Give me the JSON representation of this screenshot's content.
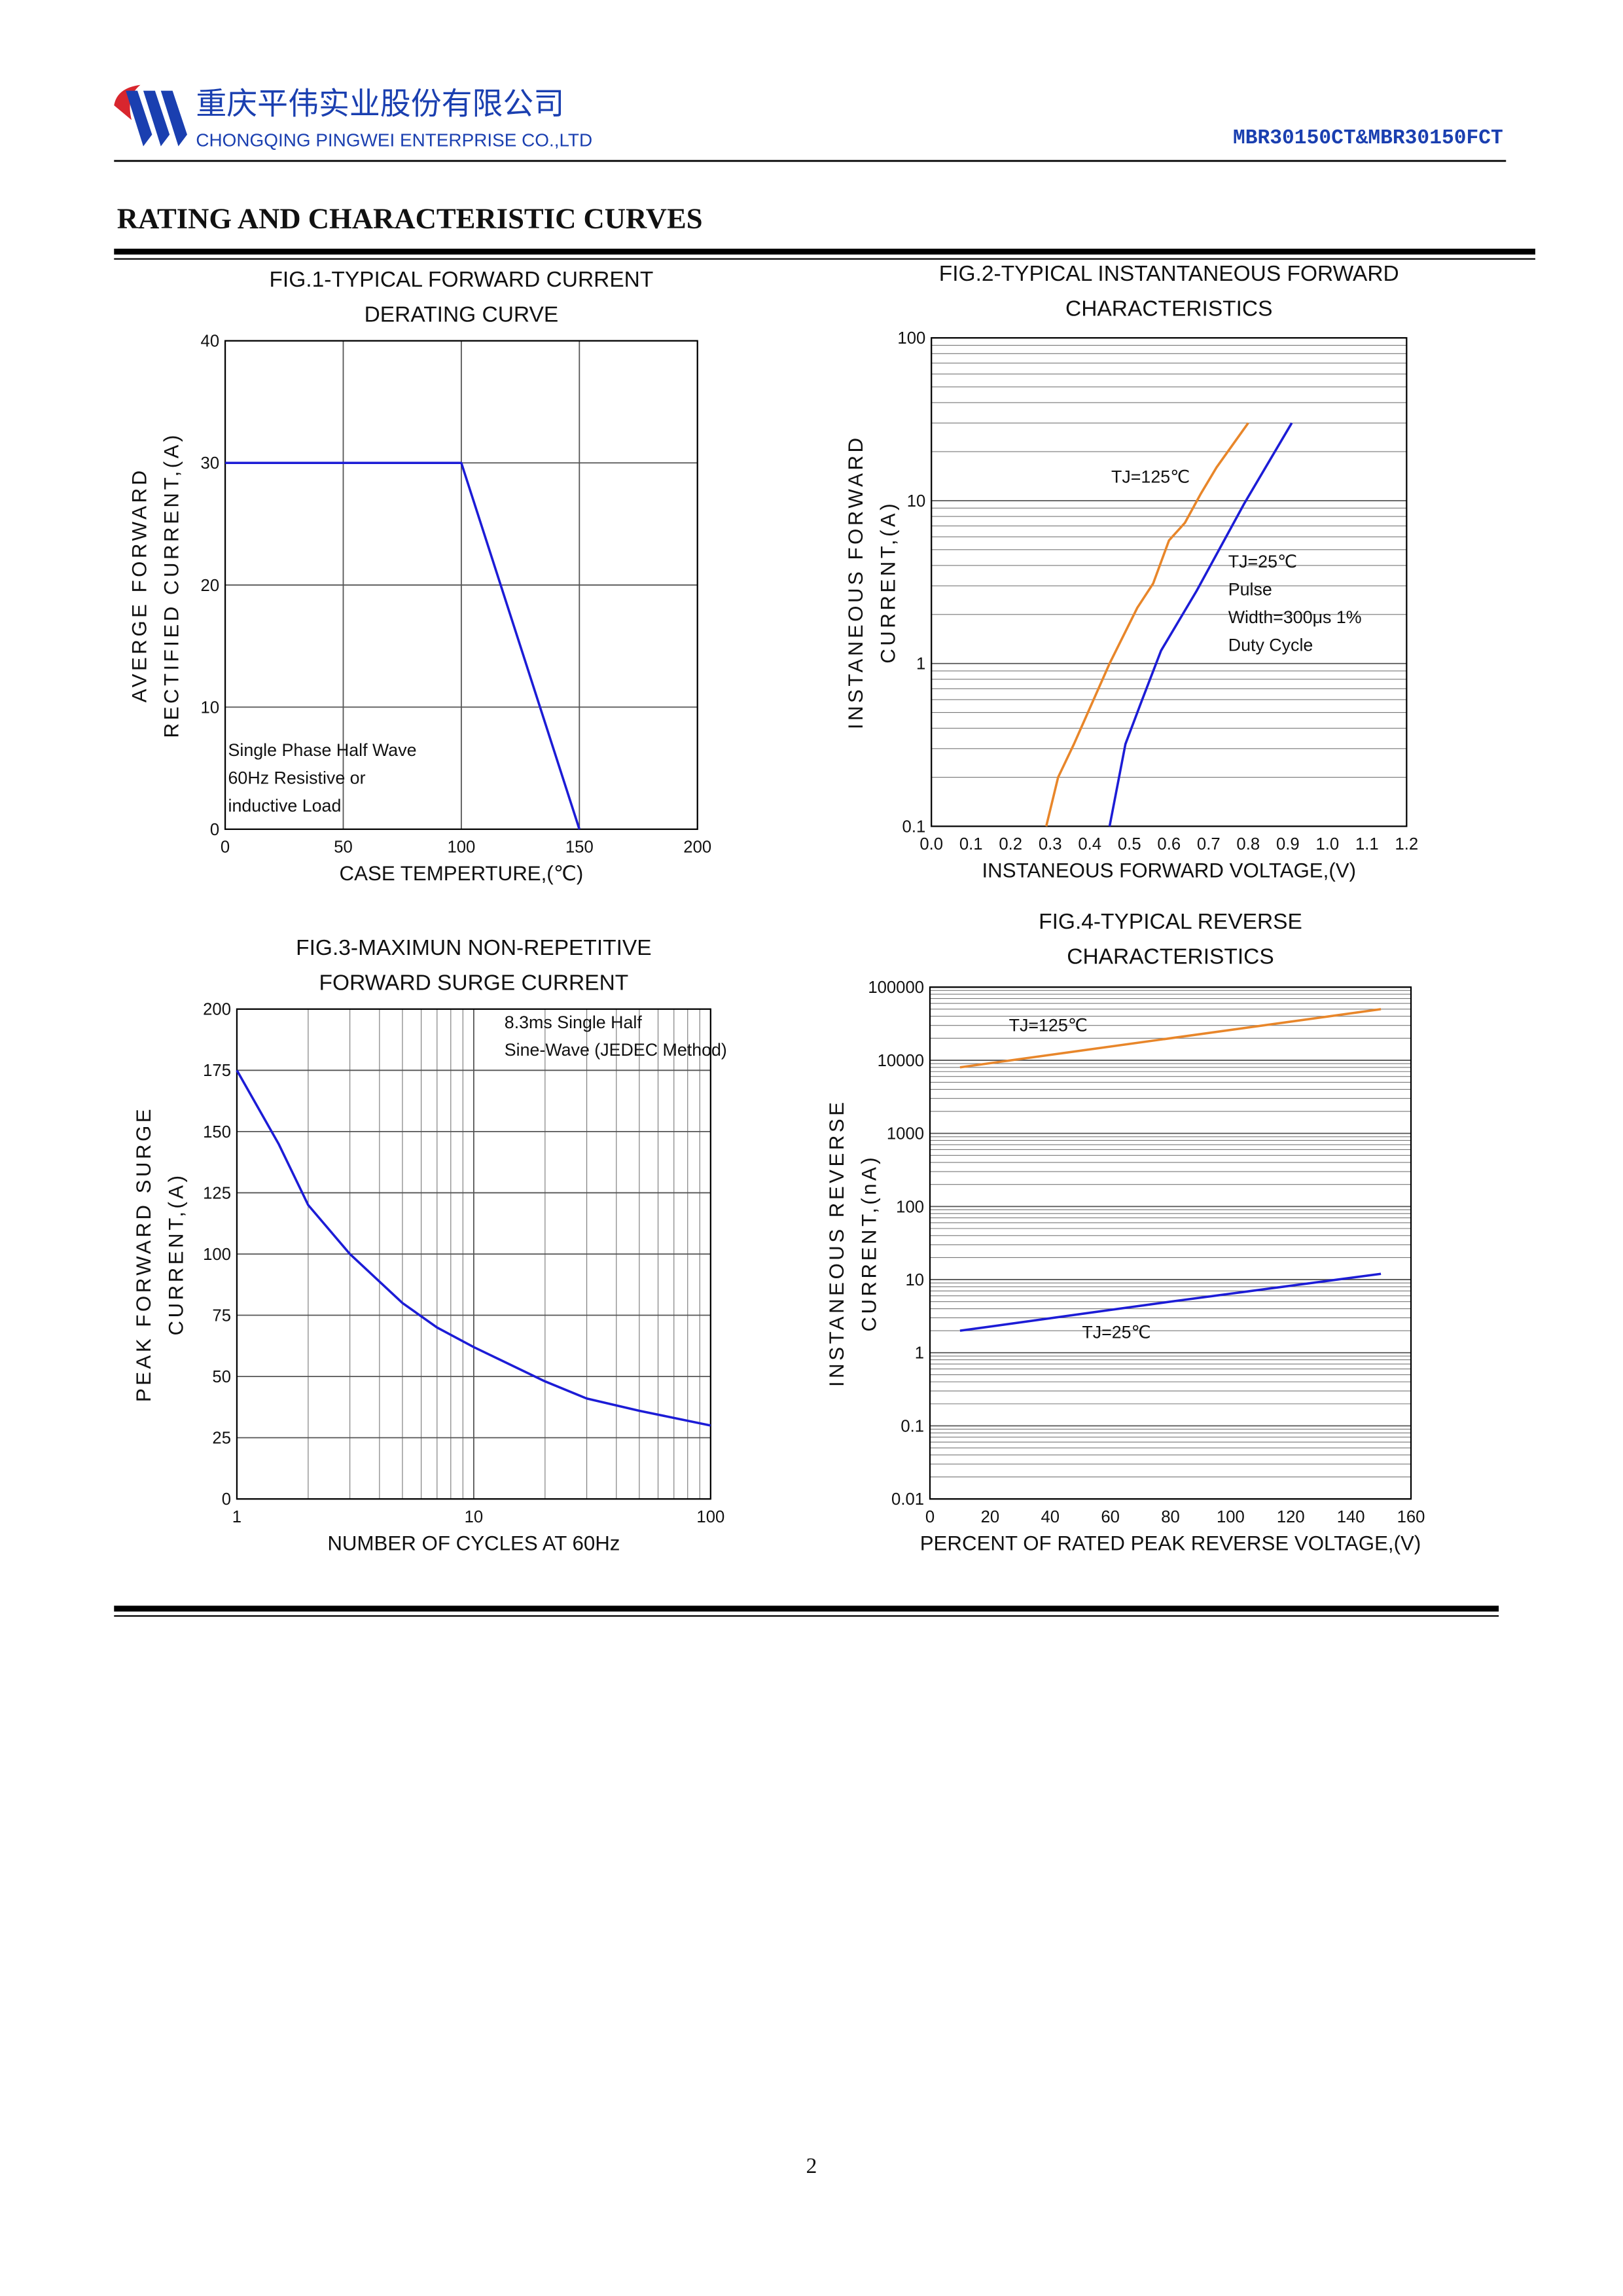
{
  "header": {
    "company_cn": "重庆平伟实业股份有限公司",
    "company_en": "CHONGQING PINGWEI ENTERPRISE CO.,LTD",
    "part_number": "MBR30150CT&MBR30150FCT"
  },
  "section_title": "RATING AND CHARACTERISTIC CURVES",
  "chart_data": [
    {
      "type": "line",
      "title": [
        "FIG.1-TYPICAL FORWARD CURRENT",
        "DERATING CURVE"
      ],
      "x_label": "CASE TEMPERTURE,(℃)",
      "y_label": [
        "AVERGE FORWARD",
        "RECTIFIED CURRENT,(A)"
      ],
      "x": [
        0,
        100,
        150
      ],
      "values": [
        30,
        30,
        0
      ],
      "color": "#1c1cd6",
      "xlim": [
        0,
        200
      ],
      "xticks": [
        0,
        50,
        100,
        150,
        200
      ],
      "ylim": [
        0,
        40
      ],
      "yticks": [
        0,
        10,
        20,
        30,
        40
      ],
      "grid": true,
      "annotation": [
        "Single Phase Half Wave",
        "60Hz Resistive or",
        "inductive Load"
      ]
    },
    {
      "type": "line",
      "title": [
        "FIG.2-TYPICAL INSTANTANEOUS FORWARD",
        "CHARACTERISTICS"
      ],
      "x_label": "INSTANEOUS FORWARD VOLTAGE,(V)",
      "y_label": [
        "INSTANEOUS FORWARD",
        "CURRENT,(A)"
      ],
      "xlim": [
        0,
        1.2
      ],
      "xticks": [
        {
          "value": 0,
          "label": "0.0"
        },
        0.1,
        0.2,
        0.3,
        0.4,
        0.5,
        0.6,
        0.7,
        0.8,
        0.9,
        {
          "value": 1,
          "label": "1.0"
        },
        1.1,
        1.2
      ],
      "ylim": [
        0.1,
        100
      ],
      "yticks": [
        0.1,
        1,
        10,
        100
      ],
      "ylog": true,
      "grid": "y",
      "series": [
        {
          "name": "TJ=125℃",
          "color": "#e8862a",
          "x": [
            0.29,
            0.32,
            0.36,
            0.45,
            0.52,
            0.56,
            0.6,
            0.64,
            0.68,
            0.72,
            0.8
          ],
          "values": [
            0.1,
            0.2,
            0.32,
            1.0,
            2.2,
            3.1,
            5.7,
            7.3,
            11,
            16,
            30
          ]
        },
        {
          "name": "TJ=25℃",
          "color": "#1c1cd6",
          "x": [
            0.45,
            0.49,
            0.53,
            0.58,
            0.67,
            0.79,
            0.91
          ],
          "values": [
            0.1,
            0.32,
            0.58,
            1.2,
            2.8,
            9.6,
            30
          ]
        }
      ],
      "annotation": [
        "Pulse",
        "Width=300μs 1%",
        "Duty Cycle"
      ]
    },
    {
      "type": "line",
      "title": [
        "FIG.3-MAXIMUN NON-REPETITIVE",
        "FORWARD SURGE CURRENT"
      ],
      "x_label": "NUMBER OF CYCLES AT 60Hz",
      "y_label": [
        "PEAK FORWARD SURGE",
        "CURRENT,(A)"
      ],
      "x": [
        1,
        1.5,
        2,
        3,
        5,
        7,
        10,
        20,
        30,
        50,
        100
      ],
      "values": [
        175,
        145,
        120,
        100,
        80,
        70,
        62,
        48,
        41,
        36,
        30
      ],
      "color": "#1c1cd6",
      "xlim": [
        1,
        100
      ],
      "xticks": [
        1,
        10,
        100
      ],
      "xlog": true,
      "ylim": [
        0,
        200
      ],
      "yticks": [
        0,
        25,
        50,
        75,
        100,
        125,
        150,
        175,
        200
      ],
      "grid": true,
      "annotation": [
        "8.3ms Single Half",
        "Sine-Wave (JEDEC Method)"
      ]
    },
    {
      "type": "line",
      "title": [
        "FIG.4-TYPICAL REVERSE",
        "CHARACTERISTICS"
      ],
      "x_label": "PERCENT OF RATED PEAK REVERSE VOLTAGE,(V)",
      "y_label": [
        "INSTANEOUS REVERSE",
        "CURRENT,(nA)"
      ],
      "xlim": [
        0,
        160
      ],
      "xticks": [
        0,
        20,
        40,
        60,
        80,
        100,
        120,
        140,
        160
      ],
      "ylim": [
        0.01,
        100000
      ],
      "yticks": [
        0.01,
        0.1,
        1,
        10,
        100,
        1000,
        10000,
        100000
      ],
      "ylog": true,
      "grid": "y",
      "series": [
        {
          "name": "TJ=125℃",
          "color": "#e8862a",
          "x": [
            10,
            80,
            150
          ],
          "values": [
            8000,
            20000,
            50000
          ]
        },
        {
          "name": "TJ=25℃",
          "color": "#1c1cd6",
          "x": [
            10,
            80,
            150
          ],
          "values": [
            2,
            5,
            12
          ]
        }
      ]
    }
  ],
  "page_number": "2"
}
